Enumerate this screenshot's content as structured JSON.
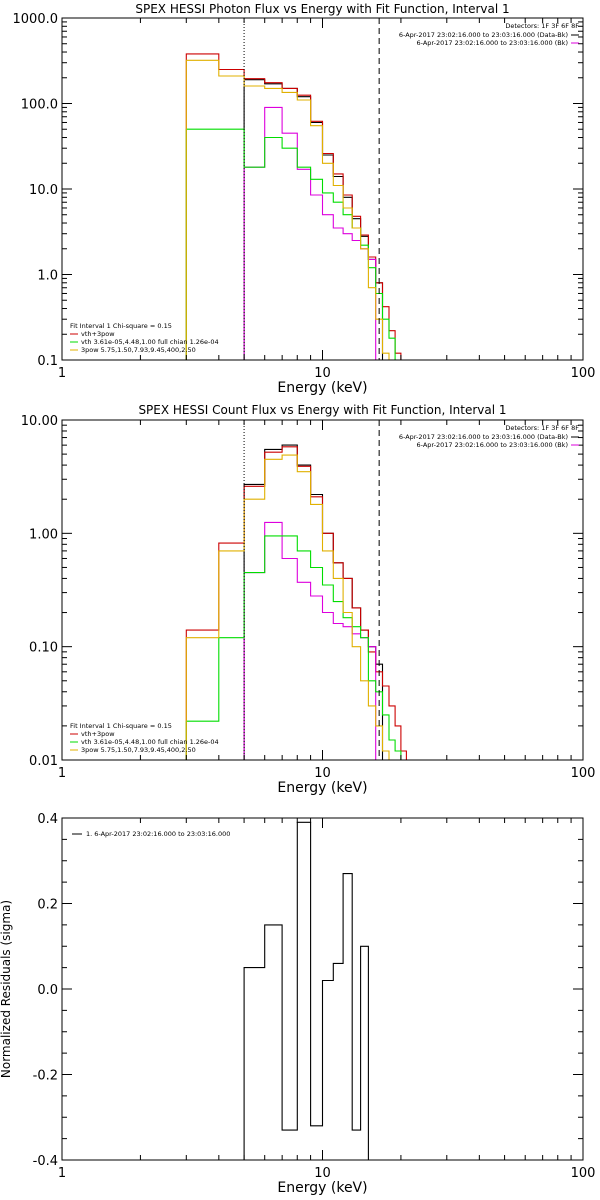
{
  "chart_data": [
    {
      "type": "line",
      "title": "SPEX HESSI Photon Flux vs Energy with Fit Function, Interval 1",
      "xlabel": "Energy (keV)",
      "ylabel": "",
      "xscale": "log",
      "yscale": "log",
      "xlim": [
        1,
        100
      ],
      "ylim": [
        0.1,
        1000
      ],
      "xticks": [
        {
          "v": 1,
          "label": "1"
        },
        {
          "v": 10,
          "label": "10"
        },
        {
          "v": 100,
          "label": "100"
        }
      ],
      "yticks": [
        {
          "v": 0.1,
          "label": "0.1"
        },
        {
          "v": 1,
          "label": "1.0"
        },
        {
          "v": 10,
          "label": "10.0"
        },
        {
          "v": 100,
          "label": "100.0"
        },
        {
          "v": 1000,
          "label": "1000.0"
        }
      ],
      "vlines": [
        {
          "x": 5.0,
          "style": "dotted"
        },
        {
          "x": 16.5,
          "style": "dashed"
        }
      ],
      "bin_edges": [
        3.0,
        4.0,
        5.0,
        6.0,
        7.0,
        8.0,
        9.0,
        10.0,
        11.0,
        12.0,
        13.0,
        14.0,
        15.0,
        16.0,
        17.0,
        18.0,
        19.0,
        20.0,
        21.0,
        22.0
      ],
      "series": [
        {
          "name": "",
          "color": "#000000",
          "values": [
            null,
            null,
            190,
            170,
            150,
            120,
            60,
            25,
            14,
            8,
            4.5,
            2.8,
            1.5,
            0.8,
            null,
            null,
            null,
            null,
            null
          ]
        },
        {
          "name": "",
          "color": "#cc0000",
          "values": [
            380,
            250,
            195,
            175,
            150,
            125,
            62,
            26,
            15,
            8.5,
            4.8,
            2.9,
            1.6,
            0.8,
            0.42,
            0.22,
            0.12,
            0.1,
            null
          ]
        },
        {
          "name": "",
          "color": "#dd00dd",
          "values": [
            null,
            null,
            18,
            90,
            45,
            17,
            8.5,
            5,
            3.5,
            3,
            2.5,
            2,
            1.5,
            null,
            null,
            null,
            null,
            null,
            null
          ]
        },
        {
          "name": "",
          "color": "#00dd00",
          "values": [
            50,
            50,
            18,
            40,
            30,
            18,
            13,
            9,
            7,
            5,
            3.5,
            2.2,
            1.2,
            0.6,
            0.3,
            0.18,
            0.1,
            null,
            null
          ]
        },
        {
          "name": "",
          "color": "#e0b000",
          "values": [
            320,
            210,
            160,
            150,
            135,
            110,
            55,
            20,
            11,
            6,
            3.5,
            2,
            0.7,
            0.3,
            0.12,
            null,
            null,
            null,
            null
          ]
        }
      ],
      "legend_top_right": {
        "detectors": "Detectors: 1F 3F 6F 8F",
        "lines": [
          {
            "text": "6-Apr-2017 23:02:16.000 to 23:03:16.000 (Data-Bk)",
            "color": "#000000"
          },
          {
            "text": "6-Apr-2017 23:02:16.000 to 23:03:16.000 (Bk)",
            "color": "#dd00dd"
          }
        ]
      },
      "legend_bottom_left": {
        "header": "Fit Interval 1   Chi-square = 0.15",
        "lines": [
          {
            "text": "vth+3pow",
            "color": "#cc0000"
          },
          {
            "text": "vth 3.61e-05,4.48,1.00   full chian 1.26e-04",
            "color": "#00dd00"
          },
          {
            "text": "3pow 5.75,1.50,7.93,9.45,400,2.50",
            "color": "#e0b000"
          }
        ]
      }
    },
    {
      "type": "line",
      "title": "SPEX HESSI Count Flux vs Energy with Fit Function, Interval 1",
      "xlabel": "Energy (keV)",
      "ylabel": "",
      "xscale": "log",
      "yscale": "log",
      "xlim": [
        1,
        100
      ],
      "ylim": [
        0.01,
        10
      ],
      "xticks": [
        {
          "v": 1,
          "label": "1"
        },
        {
          "v": 10,
          "label": "10"
        },
        {
          "v": 100,
          "label": "100"
        }
      ],
      "yticks": [
        {
          "v": 0.01,
          "label": "0.01"
        },
        {
          "v": 0.1,
          "label": "0.10"
        },
        {
          "v": 1,
          "label": "1.00"
        },
        {
          "v": 10,
          "label": "10.00"
        }
      ],
      "vlines": [
        {
          "x": 5.0,
          "style": "dotted"
        },
        {
          "x": 16.5,
          "style": "dashed"
        }
      ],
      "bin_edges": [
        3.0,
        4.0,
        5.0,
        6.0,
        7.0,
        8.0,
        9.0,
        10.0,
        11.0,
        12.0,
        13.0,
        14.0,
        15.0,
        16.0,
        17.0,
        18.0,
        19.0,
        20.0,
        21.0,
        22.0
      ],
      "series": [
        {
          "name": "",
          "color": "#000000",
          "values": [
            null,
            null,
            2.7,
            5.5,
            6.0,
            4.0,
            2.2,
            1.0,
            0.55,
            0.4,
            0.22,
            0.14,
            0.1,
            0.07,
            null,
            null,
            null,
            null,
            null
          ]
        },
        {
          "name": "",
          "color": "#cc0000",
          "values": [
            0.14,
            0.82,
            2.6,
            5.2,
            5.8,
            3.9,
            2.1,
            1.0,
            0.55,
            0.4,
            0.22,
            0.14,
            0.09,
            0.06,
            0.045,
            0.03,
            0.02,
            0.012,
            null
          ]
        },
        {
          "name": "",
          "color": "#dd00dd",
          "values": [
            null,
            null,
            0.45,
            1.25,
            0.6,
            0.37,
            0.28,
            0.2,
            0.16,
            0.15,
            0.13,
            0.12,
            0.1,
            null,
            null,
            null,
            null,
            null,
            null
          ]
        },
        {
          "name": "",
          "color": "#00dd00",
          "values": [
            0.022,
            0.12,
            0.45,
            0.95,
            0.95,
            0.7,
            0.5,
            0.35,
            0.25,
            0.18,
            0.15,
            0.12,
            0.05,
            0.04,
            0.025,
            0.015,
            0.012,
            null,
            null
          ]
        },
        {
          "name": "",
          "color": "#e0b000",
          "values": [
            0.12,
            0.7,
            2.0,
            4.5,
            4.9,
            3.5,
            1.8,
            0.7,
            0.4,
            0.2,
            0.1,
            0.05,
            0.03,
            0.02,
            0.012,
            null,
            null,
            null,
            null
          ]
        }
      ],
      "legend_top_right": {
        "detectors": "Detectors: 1F 3F 6F 8F",
        "lines": [
          {
            "text": "6-Apr-2017 23:02:16.000 to 23:03:16.000 (Data-Bk)",
            "color": "#000000"
          },
          {
            "text": "6-Apr-2017 23:02:16.000 to 23:03:16.000 (Bk)",
            "color": "#dd00dd"
          }
        ]
      },
      "legend_bottom_left": {
        "header": "Fit Interval 1   Chi-square = 0.15",
        "lines": [
          {
            "text": "vth+3pow",
            "color": "#cc0000"
          },
          {
            "text": "vth 3.61e-05,4.48,1.00   full chian 1.26e-04",
            "color": "#00dd00"
          },
          {
            "text": "3pow 5.75,1.50,7.93,9.45,400,2.50",
            "color": "#e0b000"
          }
        ]
      }
    },
    {
      "type": "line",
      "title": "",
      "xlabel": "Energy (keV)",
      "ylabel": "Normalized Residuals (sigma)",
      "xscale": "log",
      "yscale": "linear",
      "xlim": [
        1,
        100
      ],
      "ylim": [
        -0.4,
        0.4
      ],
      "xticks": [
        {
          "v": 1,
          "label": "1"
        },
        {
          "v": 10,
          "label": "10"
        },
        {
          "v": 100,
          "label": "100"
        }
      ],
      "yticks": [
        {
          "v": -0.4,
          "label": "-0.4"
        },
        {
          "v": -0.2,
          "label": "-0.2"
        },
        {
          "v": 0.0,
          "label": "0.0"
        },
        {
          "v": 0.2,
          "label": "0.2"
        },
        {
          "v": 0.4,
          "label": "0.4"
        }
      ],
      "bin_edges": [
        5.0,
        6.0,
        7.0,
        8.0,
        9.0,
        10.0,
        11.0,
        12.0,
        13.0,
        14.0,
        15.0,
        16.5
      ],
      "series": [
        {
          "name": "",
          "color": "#000000",
          "values": [
            0.05,
            0.15,
            -0.33,
            0.39,
            -0.32,
            0.02,
            0.06,
            0.27,
            -0.33,
            0.1,
            -0.4
          ]
        }
      ],
      "legend_top_left": {
        "lines": [
          {
            "text": "1.  6-Apr-2017 23:02:16.000 to 23:03:16.000",
            "color": "#000000"
          }
        ]
      }
    }
  ]
}
